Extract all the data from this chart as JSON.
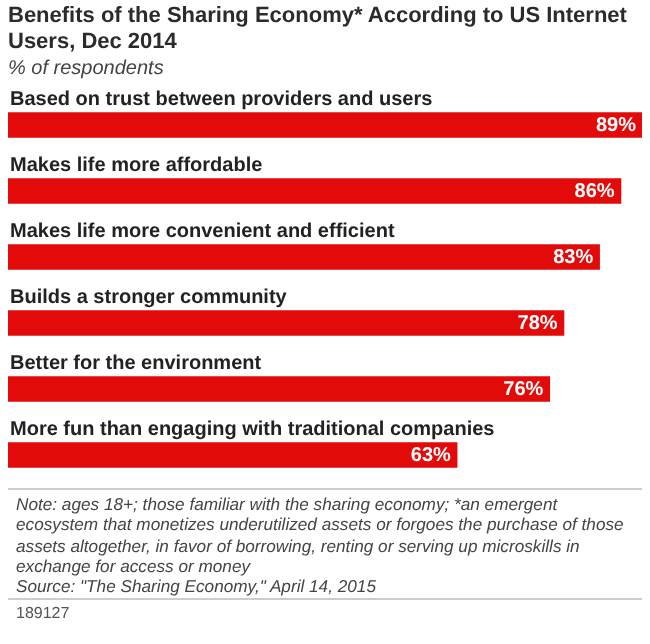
{
  "chart_data": {
    "type": "bar",
    "orientation": "horizontal",
    "title": "Benefits of the Sharing Economy* According to US Internet Users, Dec 2014",
    "subtitle": "% of respondents",
    "categories": [
      "Based on trust between providers and users",
      "Makes life more affordable",
      "Makes life more convenient and efficient",
      "Builds a stronger community",
      "Better for the environment",
      "More fun than engaging with traditional companies"
    ],
    "values": [
      89,
      86,
      83,
      78,
      76,
      63
    ],
    "value_labels": [
      "89%",
      "86%",
      "83%",
      "78%",
      "76%",
      "63%"
    ],
    "color": "#e30a0a",
    "annotations": [
      "Note: ages 18+; those familiar with the sharing economy; *an emergent ecosystem that monetizes underutilized assets or forgoes the purchase of those assets altogether, in favor of borrowing, renting or serving up microskills in exchange for access or money",
      "Source: \"The Sharing Economy,\" April 14, 2015",
      "189127"
    ]
  }
}
